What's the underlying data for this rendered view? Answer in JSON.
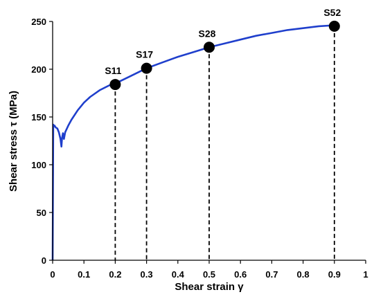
{
  "chart_data": {
    "type": "line",
    "xlabel": "Shear strain γ",
    "ylabel": "Shear stress τ (MPa)",
    "xlim": [
      0,
      1
    ],
    "ylim": [
      0,
      250
    ],
    "x_ticks": [
      0,
      0.1,
      0.2,
      0.3,
      0.4,
      0.5,
      0.6,
      0.7,
      0.8,
      0.9,
      1
    ],
    "x_tick_labels": [
      "0",
      "0.1",
      "0.2",
      "0.3",
      "0.4",
      "0.5",
      "0.6",
      "0.7",
      "0.8",
      "0.9",
      "1"
    ],
    "y_ticks": [
      0,
      50,
      100,
      150,
      200,
      250
    ],
    "y_tick_labels": [
      "0",
      "50",
      "100",
      "150",
      "200",
      "250"
    ],
    "grid": false,
    "line_color": "#1f3fcc",
    "series": [
      {
        "x": [
          0,
          0.002,
          0.004,
          0.006,
          0.01,
          0.015,
          0.02,
          0.025,
          0.028,
          0.03,
          0.033,
          0.036,
          0.04,
          0.05,
          0.06,
          0.08,
          0.1,
          0.12,
          0.15,
          0.18,
          0.2,
          0.25,
          0.3,
          0.35,
          0.4,
          0.45,
          0.5,
          0.55,
          0.6,
          0.65,
          0.7,
          0.75,
          0.8,
          0.85,
          0.9
        ],
        "y": [
          0,
          142,
          140,
          141,
          139,
          138,
          134,
          127,
          119,
          128,
          133,
          127,
          134,
          141,
          147,
          157,
          165,
          171,
          178,
          183,
          185,
          193,
          201,
          207,
          213,
          218,
          223,
          227,
          231,
          235,
          238,
          241,
          243,
          245,
          246
        ]
      }
    ],
    "points": [
      {
        "label": "S11",
        "x": 0.2,
        "y": 184
      },
      {
        "label": "S17",
        "x": 0.3,
        "y": 201
      },
      {
        "label": "S28",
        "x": 0.5,
        "y": 223
      },
      {
        "label": "S52",
        "x": 0.9,
        "y": 245
      }
    ]
  }
}
